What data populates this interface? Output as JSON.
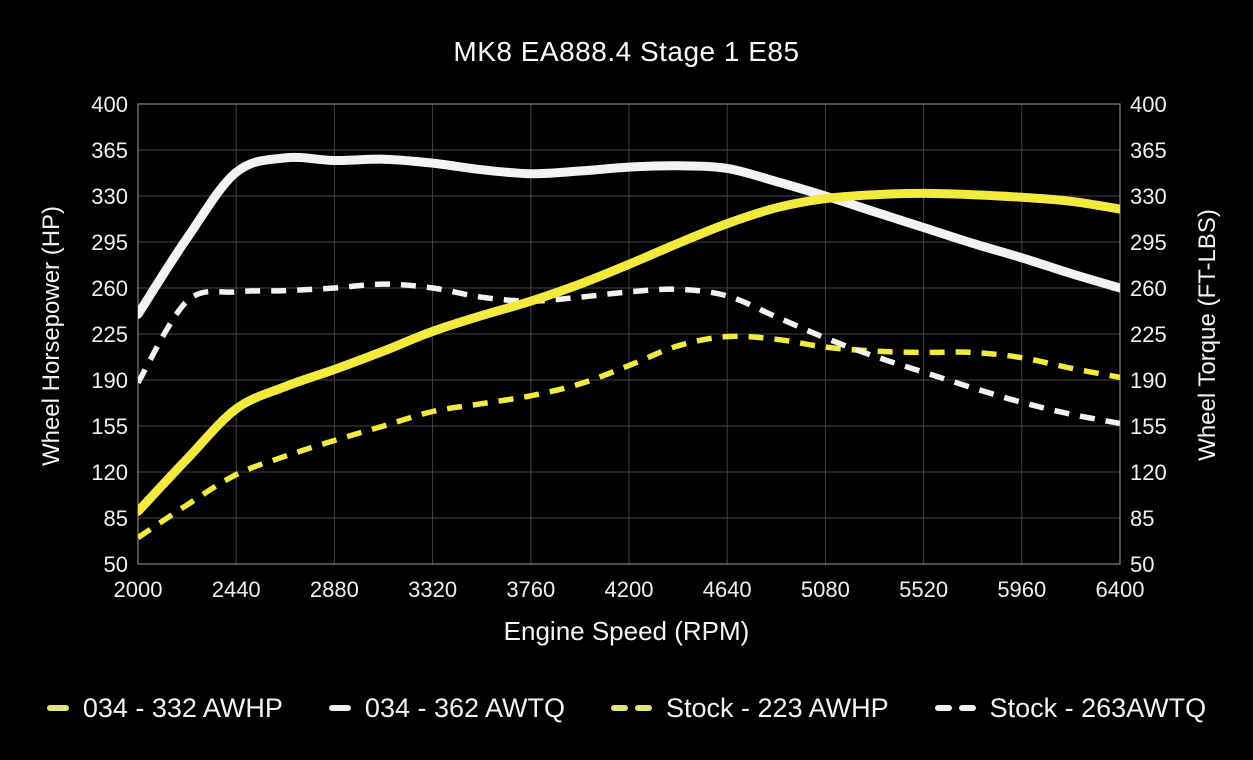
{
  "title": "MK8 EA888.4 Stage 1 E85",
  "axes": {
    "x": {
      "label": "Engine Speed (RPM)"
    },
    "y_left": {
      "label": "Wheel Horsepower (HP)"
    },
    "y_right": {
      "label": "Wheel Torque (FT-LBS)"
    }
  },
  "legend": [
    {
      "label": "034 - 332 AWHP",
      "color": "#e6e378",
      "dashed": false
    },
    {
      "label": "034 - 362 AWTQ",
      "color": "#f0f0f0",
      "dashed": false
    },
    {
      "label": "Stock - 223 AWHP",
      "color": "#e6e378",
      "dashed": true
    },
    {
      "label": "Stock - 263AWTQ",
      "color": "#f0f0f0",
      "dashed": true
    }
  ],
  "chart_data": {
    "type": "line",
    "title": "MK8 EA888.4 Stage 1 E85",
    "xlabel": "Engine Speed (RPM)",
    "ylabel_left": "Wheel Horsepower (HP)",
    "ylabel_right": "Wheel Torque (FT-LBS)",
    "xlim": [
      2000,
      6400
    ],
    "ylim": [
      50,
      400
    ],
    "x_ticks": [
      2000,
      2440,
      2880,
      3320,
      3760,
      4200,
      4640,
      5080,
      5520,
      5960,
      6400
    ],
    "y_ticks": [
      400,
      365,
      330,
      295,
      260,
      225,
      190,
      155,
      120,
      85,
      50
    ],
    "grid": true,
    "legend_position": "bottom",
    "colors": {
      "background": "#000000",
      "grid": "#434343",
      "border": "#848484",
      "text": "#f0f0f0",
      "yellow_curve": "#f2eb3d",
      "white_curve": "#f2f2f2"
    },
    "x": [
      2000,
      2220,
      2440,
      2660,
      2880,
      3100,
      3320,
      3540,
      3760,
      3980,
      4200,
      4420,
      4640,
      4860,
      5080,
      5300,
      5520,
      5740,
      5960,
      6180,
      6400
    ],
    "series": [
      {
        "name": "Stock - 223 AWHP",
        "role": "stock-horsepower",
        "unit": "HP",
        "peak_label": 223,
        "color": "#f2eb3d",
        "style": "dashed",
        "values": [
          70,
          95,
          118,
          132,
          144,
          155,
          166,
          172,
          178,
          187,
          201,
          216,
          223,
          221,
          215,
          212,
          211,
          211,
          207,
          199,
          192
        ]
      },
      {
        "name": "Stock - 263AWTQ",
        "role": "stock-torque",
        "unit": "FT-LBS",
        "peak_label": 263,
        "color": "#f2f2f2",
        "style": "dashed",
        "values": [
          188,
          250,
          257,
          258,
          260,
          263,
          260,
          253,
          250,
          253,
          257,
          259,
          254,
          238,
          222,
          208,
          196,
          184,
          173,
          164,
          157
        ]
      },
      {
        "name": "034 - 362 AWTQ",
        "role": "tuned-torque",
        "unit": "FT-LBS",
        "peak_label": 362,
        "color": "#f2f2f2",
        "style": "solid",
        "values": [
          240,
          298,
          348,
          359,
          357,
          358,
          355,
          350,
          347,
          349,
          352,
          353,
          351,
          341,
          330,
          318,
          306,
          294,
          283,
          271,
          260
        ]
      },
      {
        "name": "034 - 332 AWHP",
        "role": "tuned-horsepower",
        "unit": "HP",
        "peak_label": 332,
        "color": "#f2eb3d",
        "style": "solid",
        "values": [
          90,
          130,
          168,
          185,
          198,
          212,
          227,
          239,
          250,
          263,
          278,
          294,
          309,
          321,
          328,
          331,
          332,
          331,
          329,
          326,
          320
        ]
      }
    ]
  }
}
